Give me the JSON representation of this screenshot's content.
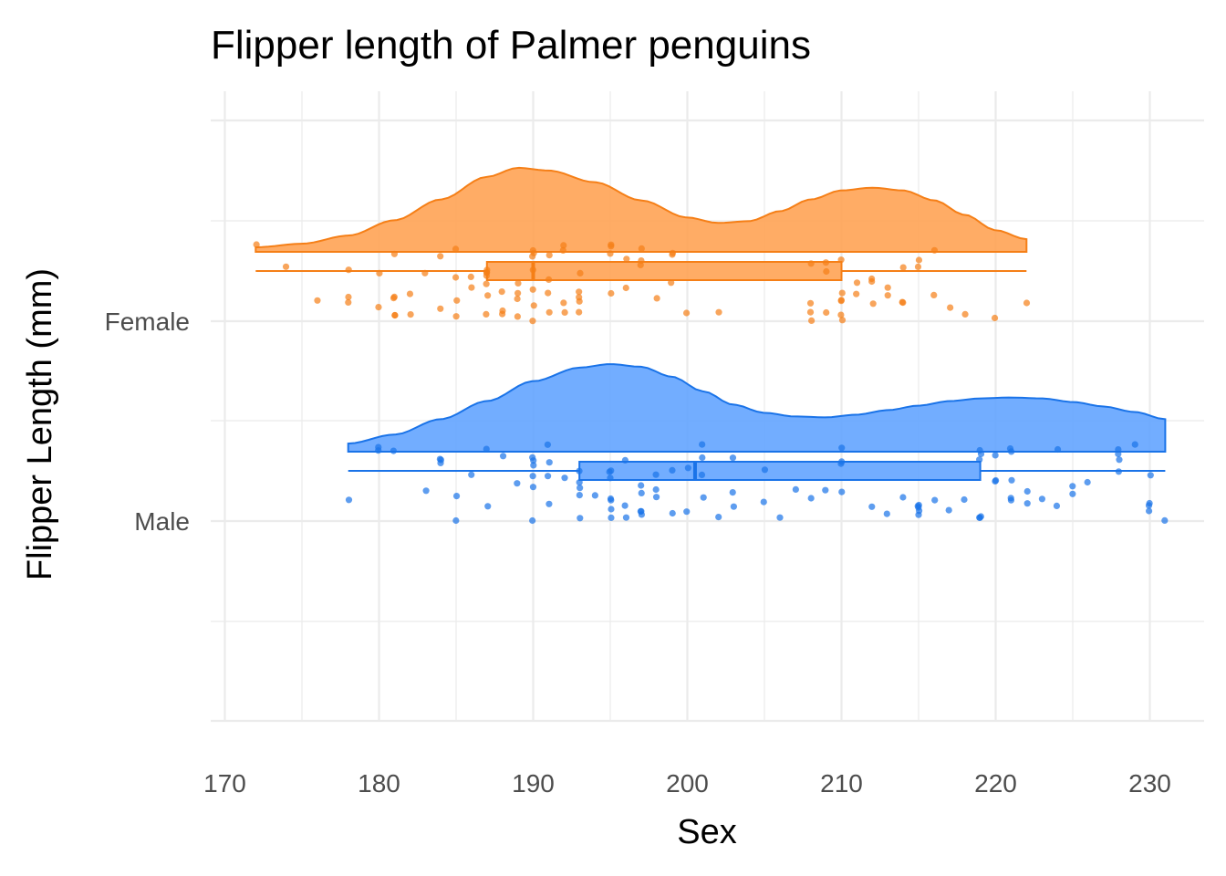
{
  "chart_data": {
    "type": "raincloud",
    "title": "Flipper length of Palmer penguins",
    "xlabel": "Sex",
    "ylabel": "Flipper Length (mm)",
    "xlim": [
      170,
      230
    ],
    "x_ticks": [
      170,
      180,
      190,
      200,
      210,
      220,
      230
    ],
    "categories": [
      "Female",
      "Male"
    ],
    "grid": true,
    "legend": "none",
    "series": [
      {
        "category": "Female",
        "color": "#f57f17",
        "fill": "#ffa354",
        "box": {
          "min": 172,
          "q1": 187,
          "median": 190,
          "q3": 210,
          "max": 222
        },
        "density": [
          [
            172,
            0.05
          ],
          [
            175,
            0.09
          ],
          [
            178,
            0.18
          ],
          [
            181,
            0.35
          ],
          [
            184,
            0.58
          ],
          [
            187,
            0.83
          ],
          [
            189,
            0.93
          ],
          [
            191,
            0.9
          ],
          [
            194,
            0.77
          ],
          [
            197,
            0.57
          ],
          [
            200,
            0.38
          ],
          [
            202,
            0.32
          ],
          [
            204,
            0.34
          ],
          [
            206,
            0.45
          ],
          [
            208,
            0.58
          ],
          [
            210,
            0.68
          ],
          [
            212,
            0.71
          ],
          [
            214,
            0.68
          ],
          [
            216,
            0.57
          ],
          [
            218,
            0.41
          ],
          [
            220,
            0.24
          ],
          [
            222,
            0.14
          ]
        ],
        "points": [
          172,
          174,
          176,
          178,
          178,
          178,
          180,
          180,
          181,
          181,
          181,
          181,
          181,
          182,
          182,
          183,
          184,
          184,
          185,
          185,
          185,
          185,
          186,
          186,
          187,
          187,
          187,
          187,
          187,
          187,
          187,
          188,
          188,
          188,
          189,
          189,
          189,
          189,
          190,
          190,
          190,
          190,
          190,
          190,
          190,
          191,
          191,
          191,
          191,
          192,
          192,
          192,
          192,
          193,
          193,
          193,
          193,
          193,
          195,
          195,
          195,
          195,
          196,
          196,
          197,
          197,
          197,
          198,
          199,
          199,
          199,
          200,
          202,
          208,
          208,
          208,
          208,
          209,
          209,
          209,
          210,
          210,
          210,
          210,
          210,
          210,
          211,
          211,
          212,
          212,
          212,
          213,
          213,
          214,
          214,
          214,
          215,
          215,
          216,
          216,
          217,
          218,
          220,
          222
        ]
      },
      {
        "category": "Male",
        "color": "#1a73e8",
        "fill": "#63a4ff",
        "box": {
          "min": 178,
          "q1": 193,
          "median": 200.5,
          "q3": 219,
          "max": 231
        },
        "density": [
          [
            178,
            0.09
          ],
          [
            181,
            0.19
          ],
          [
            184,
            0.36
          ],
          [
            187,
            0.56
          ],
          [
            190,
            0.78
          ],
          [
            193,
            0.93
          ],
          [
            195,
            0.97
          ],
          [
            197,
            0.94
          ],
          [
            199,
            0.83
          ],
          [
            201,
            0.67
          ],
          [
            203,
            0.52
          ],
          [
            205,
            0.43
          ],
          [
            207,
            0.39
          ],
          [
            209,
            0.38
          ],
          [
            211,
            0.41
          ],
          [
            213,
            0.46
          ],
          [
            215,
            0.51
          ],
          [
            217,
            0.56
          ],
          [
            219,
            0.59
          ],
          [
            221,
            0.6
          ],
          [
            223,
            0.59
          ],
          [
            225,
            0.55
          ],
          [
            227,
            0.5
          ],
          [
            229,
            0.44
          ],
          [
            231,
            0.36
          ]
        ],
        "points": [
          178,
          180,
          180,
          181,
          183,
          184,
          184,
          184,
          185,
          185,
          186,
          187,
          187,
          188,
          189,
          190,
          190,
          190,
          190,
          190,
          190,
          191,
          191,
          191,
          191,
          192,
          193,
          193,
          193,
          193,
          193,
          194,
          195,
          195,
          195,
          195,
          195,
          195,
          195,
          196,
          196,
          196,
          197,
          197,
          197,
          197,
          197,
          198,
          198,
          198,
          199,
          199,
          200,
          200,
          201,
          201,
          201,
          201,
          202,
          203,
          203,
          203,
          205,
          205,
          206,
          207,
          208,
          209,
          210,
          210,
          210,
          210,
          212,
          213,
          214,
          215,
          215,
          215,
          215,
          215,
          216,
          217,
          218,
          219,
          219,
          219,
          219,
          219,
          219,
          220,
          220,
          220,
          221,
          221,
          221,
          221,
          221,
          222,
          222,
          223,
          224,
          224,
          225,
          225,
          226,
          228,
          228,
          228,
          228,
          229,
          230,
          230,
          230,
          230,
          231
        ]
      }
    ]
  }
}
